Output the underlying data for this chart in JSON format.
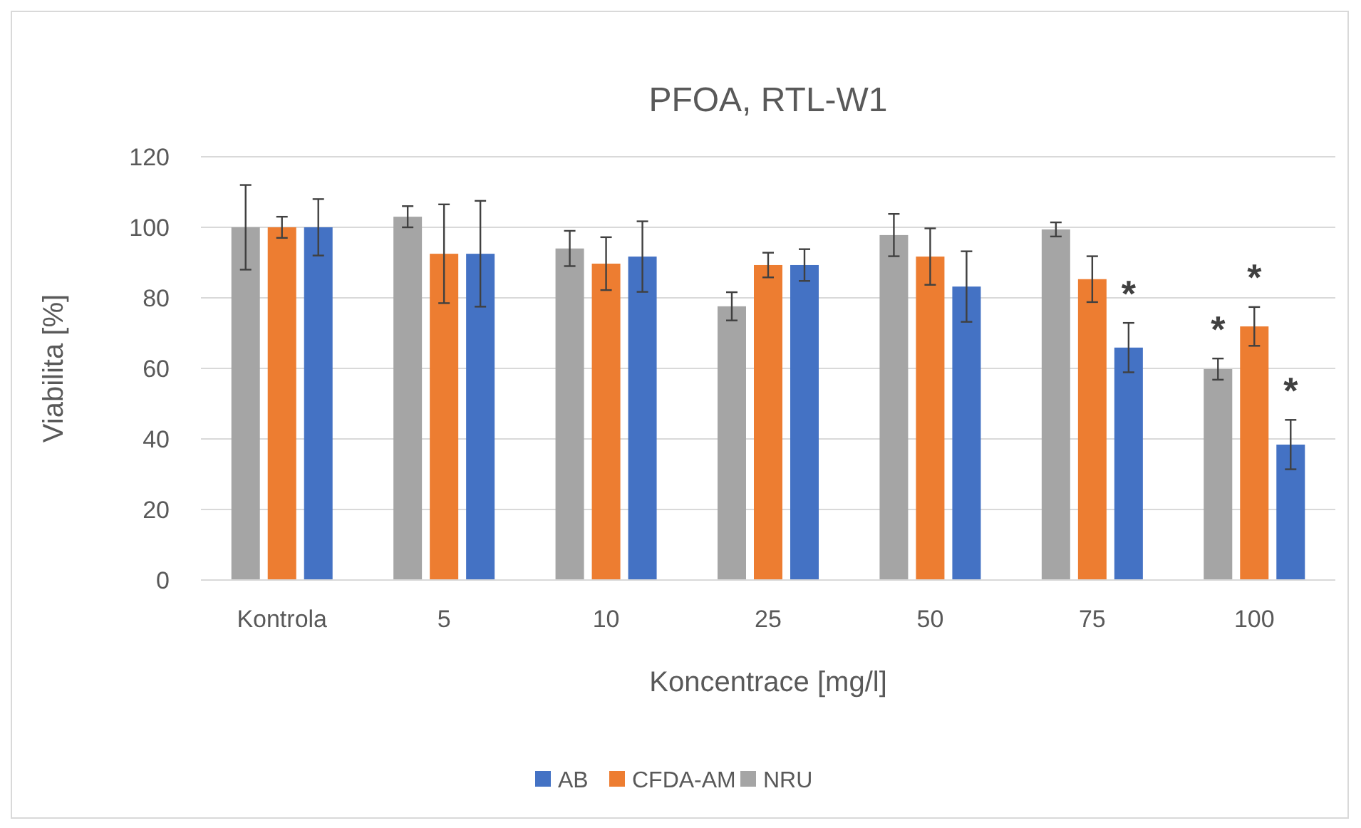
{
  "chart_data": {
    "type": "bar",
    "title": "PFOA, RTL-W1",
    "xlabel": "Koncentrace [mg/l]",
    "ylabel": "Viabilita [%]",
    "categories": [
      "Kontrola",
      "5",
      "10",
      "25",
      "50",
      "75",
      "100"
    ],
    "series": [
      {
        "name": "NRU",
        "color": "#a5a5a5",
        "values": [
          100,
          103,
          94,
          77.6,
          97.8,
          99.4,
          59.8
        ],
        "errors": [
          12,
          3,
          5,
          4,
          6,
          2,
          3
        ]
      },
      {
        "name": "CFDA-AM",
        "color": "#ed7d31",
        "values": [
          100,
          92.5,
          89.7,
          89.3,
          91.7,
          85.3,
          71.9
        ],
        "errors": [
          3,
          14,
          7.5,
          3.5,
          8,
          6.5,
          5.5
        ]
      },
      {
        "name": "AB",
        "color": "#4472c4",
        "values": [
          100,
          92.5,
          91.7,
          89.3,
          83.2,
          65.9,
          38.4
        ],
        "errors": [
          8,
          15,
          10,
          4.5,
          10,
          7,
          7
        ]
      }
    ],
    "ylim": [
      0,
      120
    ],
    "yticks": [
      0,
      20,
      40,
      60,
      80,
      100,
      120
    ],
    "grid": "y",
    "legend": "bottom",
    "annotations": [
      "*",
      "*",
      "*",
      "*"
    ]
  }
}
